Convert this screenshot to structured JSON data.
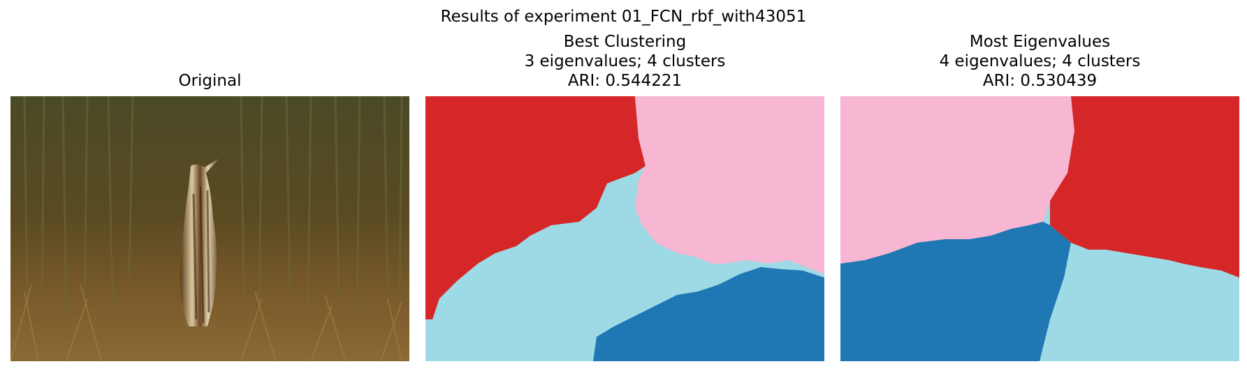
{
  "figure": {
    "suptitle": "Results of experiment 01_FCN_rbf_with43051"
  },
  "panels": [
    {
      "title_lines": [
        "Original"
      ]
    },
    {
      "title_lines": [
        "Best Clustering",
        "3 eigenvalues; 4 clusters",
        "ARI: 0.544221"
      ]
    },
    {
      "title_lines": [
        "Most Eigenvalues",
        "4 eigenvalues; 4 clusters",
        "ARI: 0.530439"
      ]
    }
  ],
  "colors": {
    "red": "#d62728",
    "pink": "#f7b6d2",
    "light_blue": "#9edae5",
    "dark_blue": "#1f77b4"
  }
}
